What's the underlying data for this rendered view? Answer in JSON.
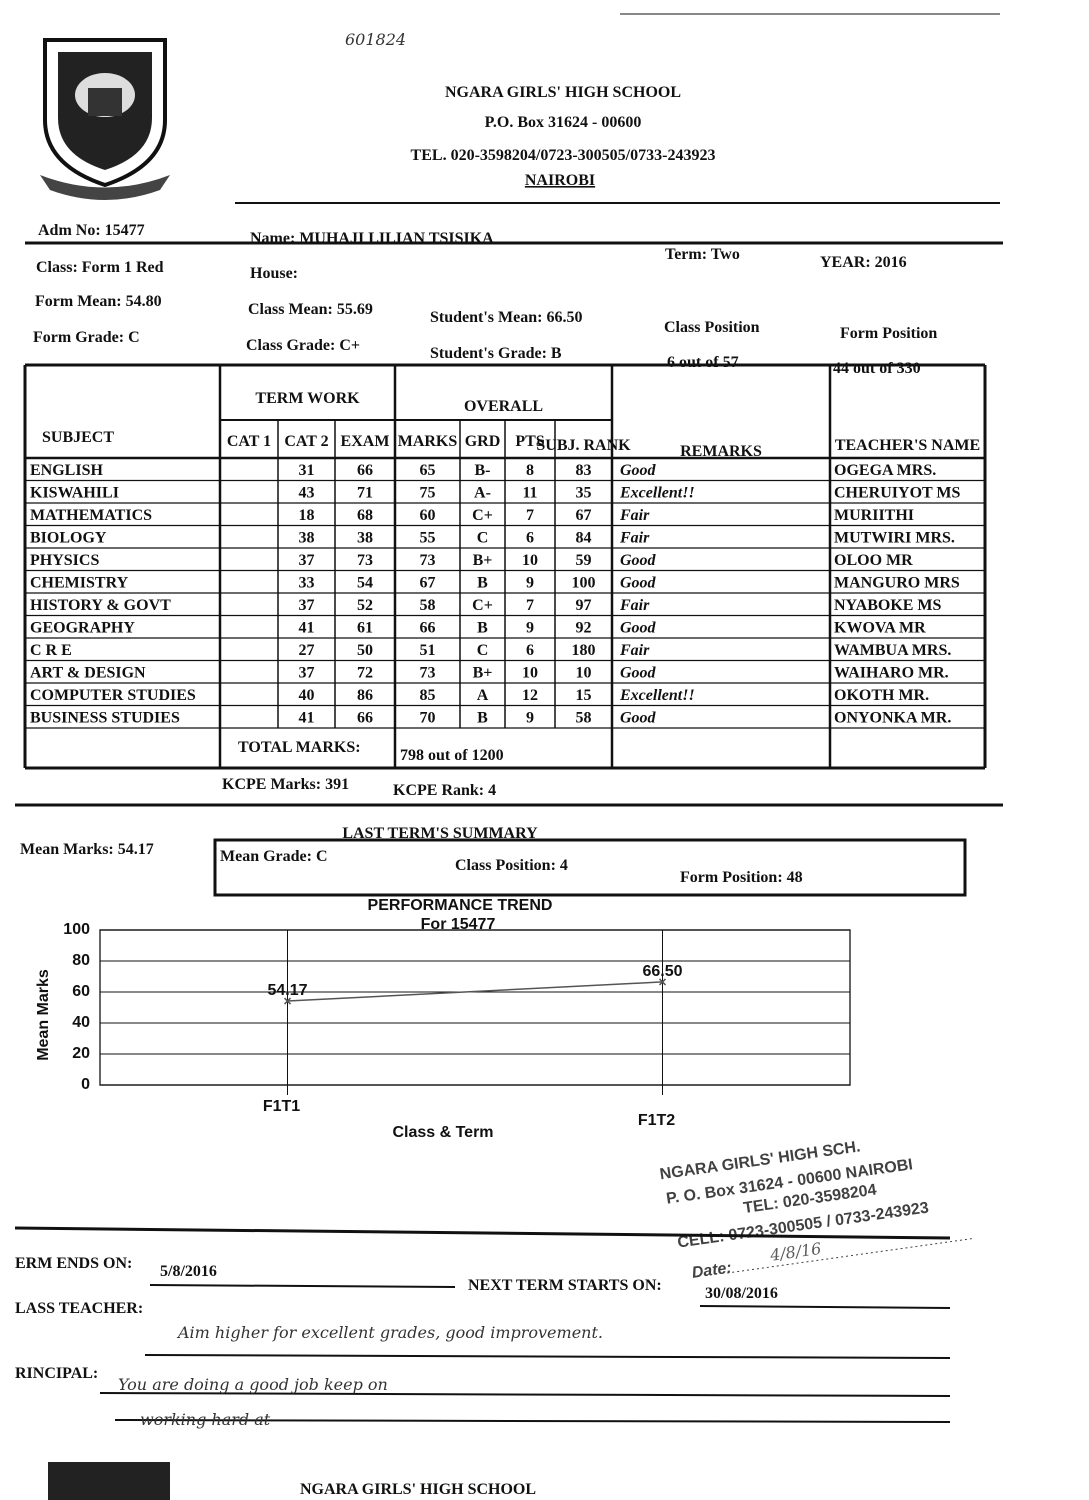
{
  "handwritten_ref": "601824",
  "header": {
    "school": "NGARA GIRLS' HIGH SCHOOL",
    "address": "P.O. Box 31624 - 00600",
    "tel": "TEL. 020-3598204/0723-300505/0733-243923",
    "city": "NAIROBI"
  },
  "student": {
    "adm_no": {
      "label": "Adm No:",
      "value": "15477"
    },
    "class": {
      "label": "Class:",
      "value": "Form 1 Red"
    },
    "form_mean": {
      "label": "Form Mean:",
      "value": "54.80"
    },
    "form_grade": {
      "label": "Form Grade:",
      "value": "C"
    },
    "name": {
      "label": "Name:",
      "value": "MUHAJI LILIAN TSISIKA"
    },
    "house": {
      "label": "House:"
    },
    "class_mean": {
      "label": "Class Mean:",
      "value": "55.69"
    },
    "class_grade": {
      "label": "Class Grade:",
      "value": "C+"
    },
    "student_mean": {
      "label": "Student's Mean:",
      "value": "66.50"
    },
    "student_grade": {
      "label": "Student's Grade:",
      "value": "B"
    },
    "term": {
      "label": "Term:",
      "value": "Two"
    },
    "year": {
      "label": "YEAR:",
      "value": "2016"
    },
    "class_position": {
      "label": "Class Position",
      "position": "6",
      "of": "out of",
      "total": "57"
    },
    "form_position": {
      "label": "Form Position",
      "position": "44",
      "of": "out of",
      "total": "330"
    }
  },
  "table": {
    "groups": [
      "TERM WORK",
      "OVERALL"
    ],
    "columns": [
      "SUBJECT",
      "CAT 1",
      "CAT 2",
      "EXAM",
      "MARKS",
      "GRD",
      "PTS",
      "SUBJ. RANK",
      "REMARKS",
      "TEACHER'S NAME"
    ],
    "rows": [
      [
        "ENGLISH",
        null,
        "31",
        "66",
        "65",
        "B-",
        "8",
        "83",
        "Good",
        "OGEGA MRS."
      ],
      [
        "KISWAHILI",
        null,
        "43",
        "71",
        "75",
        "A-",
        "11",
        "35",
        "Excellent!!",
        "CHERUIYOT MS"
      ],
      [
        "MATHEMATICS",
        null,
        "18",
        "68",
        "60",
        "C+",
        "7",
        "67",
        "Fair",
        "MURIITHI"
      ],
      [
        "BIOLOGY",
        null,
        "38",
        "38",
        "55",
        "C",
        "6",
        "84",
        "Fair",
        "MUTWIRI MRS."
      ],
      [
        "PHYSICS",
        null,
        "37",
        "73",
        "73",
        "B+",
        "10",
        "59",
        "Good",
        "OLOO MR"
      ],
      [
        "CHEMISTRY",
        null,
        "33",
        "54",
        "67",
        "B",
        "9",
        "100",
        "Good",
        "MANGURO MRS"
      ],
      [
        "HISTORY & GOVT",
        null,
        "37",
        "52",
        "58",
        "C+",
        "7",
        "97",
        "Fair",
        "NYABOKE MS"
      ],
      [
        "GEOGRAPHY",
        null,
        "41",
        "61",
        "66",
        "B",
        "9",
        "92",
        "Good",
        "KWOVA MR"
      ],
      [
        "C R E",
        null,
        "27",
        "50",
        "51",
        "C",
        "6",
        "180",
        "Fair",
        "WAMBUA MRS."
      ],
      [
        "ART & DESIGN",
        null,
        "37",
        "72",
        "73",
        "B+",
        "10",
        "10",
        "Good",
        "WAIHARO MR."
      ],
      [
        "COMPUTER STUDIES",
        null,
        "40",
        "86",
        "85",
        "A",
        "12",
        "15",
        "Excellent!!",
        "OKOTH MR."
      ],
      [
        "BUSINESS STUDIES",
        null,
        "41",
        "66",
        "70",
        "B",
        "9",
        "58",
        "Good",
        "ONYONKA MR."
      ]
    ],
    "total": {
      "label": "TOTAL MARKS:",
      "marks": "798",
      "of": "out of",
      "max": "1200"
    }
  },
  "kcpe": {
    "marks": {
      "label": "KCPE Marks:",
      "value": "391"
    },
    "rank": {
      "label": "KCPE Rank:",
      "value": "4"
    }
  },
  "last_term": {
    "title": "LAST TERM'S SUMMARY",
    "mean_marks": {
      "label": "Mean Marks:",
      "value": "54.17"
    },
    "mean_grade": {
      "label": "Mean Grade:",
      "value": "C"
    },
    "class_position": {
      "label": "Class Position:",
      "value": "4"
    },
    "form_position": {
      "label": "Form Position:",
      "value": "48"
    }
  },
  "chart_data": {
    "type": "line",
    "title": "PERFORMANCE TREND",
    "subtitle": "For 15477",
    "x_label": "Class & Term",
    "y_label": "Mean Marks",
    "categories": [
      "F1T1",
      "F1T2"
    ],
    "values": [
      54.17,
      66.5
    ],
    "value_labels": [
      "54.17",
      "66.50"
    ],
    "color": "#555555",
    "ylim": [
      0,
      100
    ],
    "yticks": [
      0,
      20,
      40,
      60,
      80,
      100
    ],
    "grid": true
  },
  "stamp": {
    "lines": [
      "NGARA GIRLS' HIGH SCH.",
      "P. O. Box 31624 - 00600 NAIROBI",
      "TEL: 020-3598204",
      "CELL: 0723-300505 / 0733-243923"
    ],
    "date_label": "Date:",
    "date": "4/8/16"
  },
  "footer": {
    "term_ends": {
      "label": "ERM ENDS ON:",
      "value": "5/8/2016"
    },
    "next_term": {
      "label": "NEXT TERM STARTS ON:",
      "value": "30/08/2016"
    },
    "class_teacher": {
      "label": "LASS TEACHER:",
      "comment": "Aim higher for excellent grades, good improvement."
    },
    "principal": {
      "label": "RINCIPAL:",
      "comment": [
        "You are doing a good job keep on",
        "working hard at"
      ]
    }
  },
  "bottom_banner": "NGARA GIRLS' HIGH SCHOOL"
}
